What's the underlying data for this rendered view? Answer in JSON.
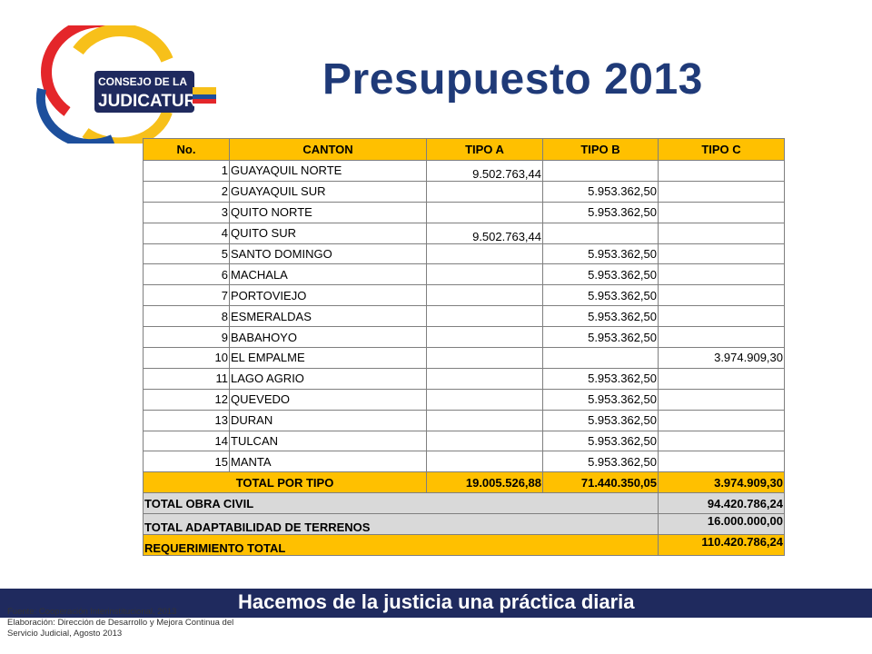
{
  "logo": {
    "line1": "CONSEJO DE LA",
    "line2": "JUDICATURA"
  },
  "title": "Presupuesto 2013",
  "table": {
    "headers": [
      "No.",
      "CANTON",
      "TIPO A",
      "TIPO B",
      "TIPO C"
    ],
    "rows": [
      {
        "no": "1",
        "canton": "GUAYAQUIL NORTE",
        "a": "9.502.763,44",
        "b": "",
        "c": ""
      },
      {
        "no": "2",
        "canton": "GUAYAQUIL SUR",
        "a": "",
        "b": "5.953.362,50",
        "c": ""
      },
      {
        "no": "3",
        "canton": "QUITO NORTE",
        "a": "",
        "b": "5.953.362,50",
        "c": ""
      },
      {
        "no": "4",
        "canton": "QUITO SUR",
        "a": "9.502.763,44",
        "b": "",
        "c": ""
      },
      {
        "no": "5",
        "canton": "SANTO DOMINGO",
        "a": "",
        "b": "5.953.362,50",
        "c": ""
      },
      {
        "no": "6",
        "canton": "MACHALA",
        "a": "",
        "b": "5.953.362,50",
        "c": ""
      },
      {
        "no": "7",
        "canton": "PORTOVIEJO",
        "a": "",
        "b": "5.953.362,50",
        "c": ""
      },
      {
        "no": "8",
        "canton": "ESMERALDAS",
        "a": "",
        "b": "5.953.362,50",
        "c": ""
      },
      {
        "no": "9",
        "canton": "BABAHOYO",
        "a": "",
        "b": "5.953.362,50",
        "c": ""
      },
      {
        "no": "10",
        "canton": "EL EMPALME",
        "a": "",
        "b": "",
        "c": "3.974.909,30"
      },
      {
        "no": "11",
        "canton": "LAGO AGRIO",
        "a": "",
        "b": "5.953.362,50",
        "c": ""
      },
      {
        "no": "12",
        "canton": "QUEVEDO",
        "a": "",
        "b": "5.953.362,50",
        "c": ""
      },
      {
        "no": "13",
        "canton": "DURAN",
        "a": "",
        "b": "5.953.362,50",
        "c": ""
      },
      {
        "no": "14",
        "canton": "TULCAN",
        "a": "",
        "b": "5.953.362,50",
        "c": ""
      },
      {
        "no": "15",
        "canton": "MANTA",
        "a": "",
        "b": "5.953.362,50",
        "c": ""
      }
    ],
    "total_por_tipo": {
      "label": "TOTAL POR TIPO",
      "a": "19.005.526,88",
      "b": "71.440.350,05",
      "c": "3.974.909,30"
    },
    "total_obra_civil": {
      "label": "TOTAL OBRA CIVIL",
      "value": "94.420.786,24"
    },
    "total_terrenos": {
      "label": "TOTAL ADAPTABILIDAD DE TERRENOS",
      "value": "16.000.000,00"
    },
    "requerimiento": {
      "label": "REQUERIMIENTO TOTAL",
      "value": "110.420.786,24"
    }
  },
  "banner": "Hacemos de la justicia una práctica diaria",
  "source": {
    "line1": "Fuente: Cooperación Interinstitucional,  2013",
    "line2": "Elaboración: Dirección de Desarrollo y Mejora Continua del",
    "line3": "Servicio Judicial, Agosto 2013"
  },
  "colors": {
    "title": "#1f3a78",
    "header": "#ffc000",
    "gray": "#d9d9d9",
    "banner": "#1f2a5e"
  }
}
